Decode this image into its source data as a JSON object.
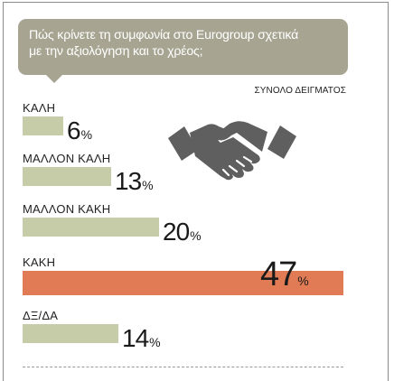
{
  "question": "Πώς κρίνετε τη συμφωνία στο Eurogroup σχετικά\nμε την αξιολόγηση και το χρέος;",
  "sample_label": "ΣΥΝΟΛΟ ΔΕΙΓΜΑΤΟΣ",
  "percent_sign": "%",
  "icon": "handshake-icon",
  "colors": {
    "bubble": "#a7a592",
    "bar": "#c5cca7",
    "highlight": "#e07b56",
    "icon": "#5f5f5f"
  },
  "chart_data": {
    "type": "bar",
    "orientation": "horizontal",
    "categories": [
      "ΚΑΛΗ",
      "ΜΑΛΛΟΝ ΚΑΛΗ",
      "ΜΑΛΛΟΝ ΚΑΚΗ",
      "ΚΑΚΗ",
      "ΔΞ/ΔΑ"
    ],
    "values": [
      6,
      13,
      20,
      47,
      14
    ],
    "unit": "%",
    "highlight_index": 3,
    "xlim": [
      0,
      47
    ]
  }
}
